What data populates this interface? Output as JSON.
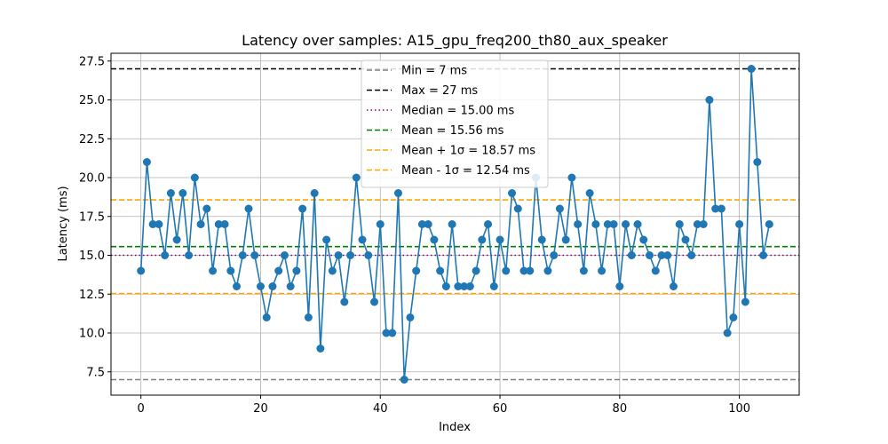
{
  "chart_data": {
    "type": "line",
    "title": "Latency over samples: A15_gpu_freq200_th80_aux_speaker",
    "xlabel": "Index",
    "ylabel": "Latency (ms)",
    "xlim": [
      -5,
      110
    ],
    "ylim": [
      6.0,
      28.0
    ],
    "xticks": [
      0,
      20,
      40,
      60,
      80,
      100
    ],
    "yticks": [
      7.5,
      10.0,
      12.5,
      15.0,
      17.5,
      20.0,
      22.5,
      25.0,
      27.5
    ],
    "ytick_labels": [
      "7.5",
      "10.0",
      "12.5",
      "15.0",
      "17.5",
      "20.0",
      "22.5",
      "25.0",
      "27.5"
    ],
    "grid": true,
    "legend_position": "top-center",
    "series": [
      {
        "color": "#1f77b4",
        "marker": "circle",
        "values": [
          14,
          21,
          17,
          17,
          15,
          19,
          16,
          19,
          15,
          20,
          17,
          18,
          14,
          17,
          17,
          14,
          13,
          15,
          18,
          15,
          13,
          11,
          13,
          14,
          15,
          13,
          14,
          18,
          11,
          19,
          9,
          16,
          14,
          15,
          12,
          15,
          20,
          16,
          15,
          12,
          17,
          10,
          10,
          19,
          7,
          11,
          14,
          17,
          17,
          16,
          14,
          13,
          17,
          13,
          13,
          13,
          14,
          16,
          17,
          13,
          16,
          14,
          19,
          18,
          14,
          14,
          20,
          16,
          14,
          15,
          18,
          16,
          20,
          17,
          14,
          19,
          17,
          14,
          17,
          17,
          13,
          17,
          15,
          17,
          16,
          15,
          14,
          15,
          15,
          13,
          17,
          16,
          15,
          17,
          17,
          25,
          18,
          18,
          10,
          11,
          17,
          12,
          27,
          21,
          15,
          17
        ]
      }
    ],
    "reference_lines": [
      {
        "label": "Min = 7 ms",
        "value": 7,
        "color": "#808080",
        "style": "dashed"
      },
      {
        "label": "Max = 27 ms",
        "value": 27,
        "color": "#000000",
        "style": "dashed"
      },
      {
        "label": "Median = 15.00 ms",
        "value": 15.0,
        "color": "#800080",
        "style": "dotted"
      },
      {
        "label": "Mean = 15.56 ms",
        "value": 15.56,
        "color": "#008000",
        "style": "dashed"
      },
      {
        "label": "Mean + 1σ = 18.57 ms",
        "value": 18.57,
        "color": "#ffa500",
        "style": "dashed"
      },
      {
        "label": "Mean - 1σ = 12.54 ms",
        "value": 12.54,
        "color": "#ffa500",
        "style": "dashed"
      }
    ]
  }
}
